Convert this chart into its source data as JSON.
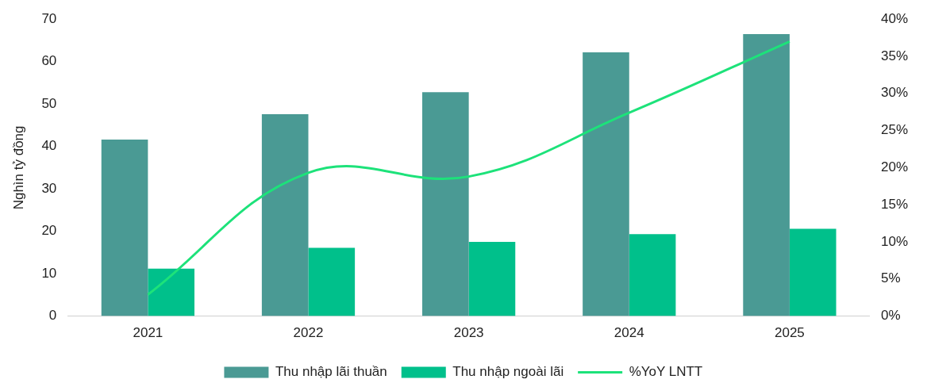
{
  "chart_data": {
    "type": "bar",
    "ylabel": "Nghìn tỷ đồng",
    "categories": [
      "2021",
      "2022",
      "2023",
      "2024",
      "2025"
    ],
    "series": [
      {
        "name": "Thu nhập lãi thuần",
        "color": "#4a9a94",
        "values": [
          41.6,
          47.6,
          52.8,
          62.2,
          66.5
        ]
      },
      {
        "name": "Thu nhập ngoài lãi",
        "color": "#00c08b",
        "values": [
          11.2,
          16.1,
          17.5,
          19.3,
          20.6
        ]
      },
      {
        "name": "%YoY LNTT",
        "type": "line",
        "axis": "y2",
        "color": "#1de27a",
        "values": [
          2.9,
          19.3,
          18.8,
          27.4,
          37.0
        ]
      }
    ],
    "ylim": [
      0,
      70
    ],
    "yticks": [
      0,
      10,
      20,
      30,
      40,
      50,
      60,
      70
    ],
    "y2lim": [
      0,
      40
    ],
    "y2ticks": [
      {
        "value": 0,
        "label": "0%"
      },
      {
        "value": 5,
        "label": "5%"
      },
      {
        "value": 10,
        "label": "10%"
      },
      {
        "value": 15,
        "label": "15%"
      },
      {
        "value": 20,
        "label": "20%"
      },
      {
        "value": 25,
        "label": "25%"
      },
      {
        "value": 30,
        "label": "30%"
      },
      {
        "value": 35,
        "label": "35%"
      },
      {
        "value": 40,
        "label": "40%"
      }
    ],
    "grid": false,
    "legend": "bottom",
    "marker": "none",
    "line_style": "solid"
  }
}
